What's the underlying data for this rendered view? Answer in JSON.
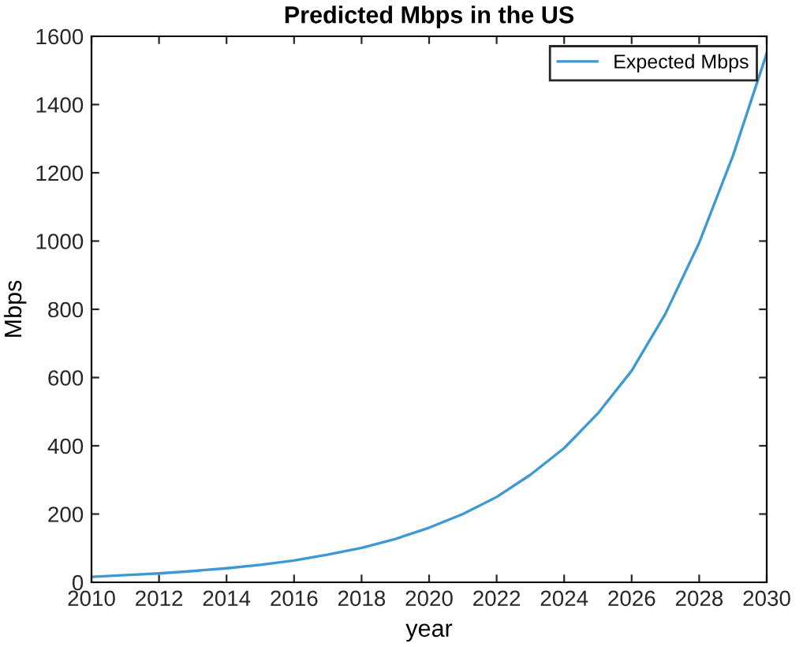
{
  "chart_data": {
    "type": "line",
    "title": "Predicted Mbps in the US",
    "xlabel": "year",
    "ylabel": "Mbps",
    "x": [
      2010,
      2011,
      2012,
      2013,
      2014,
      2015,
      2016,
      2017,
      2018,
      2019,
      2020,
      2021,
      2022,
      2023,
      2024,
      2025,
      2026,
      2027,
      2028,
      2029,
      2030
    ],
    "series": [
      {
        "name": "Expected Mbps",
        "color": "#3c99d4",
        "values": [
          16,
          21,
          26,
          33,
          41,
          51,
          64,
          81,
          101,
          127,
          160,
          200,
          250,
          315,
          393,
          495,
          620,
          787,
          995,
          1250,
          1550
        ]
      }
    ],
    "xlim": [
      2010,
      2030
    ],
    "xticks": [
      2010,
      2012,
      2014,
      2016,
      2018,
      2020,
      2022,
      2024,
      2026,
      2028,
      2030
    ],
    "ylim": [
      0,
      1600
    ],
    "yticks": [
      0,
      200,
      400,
      600,
      800,
      1000,
      1200,
      1400,
      1600
    ],
    "grid": false,
    "legend": "top right",
    "marker": "none",
    "line_style": "solid"
  }
}
